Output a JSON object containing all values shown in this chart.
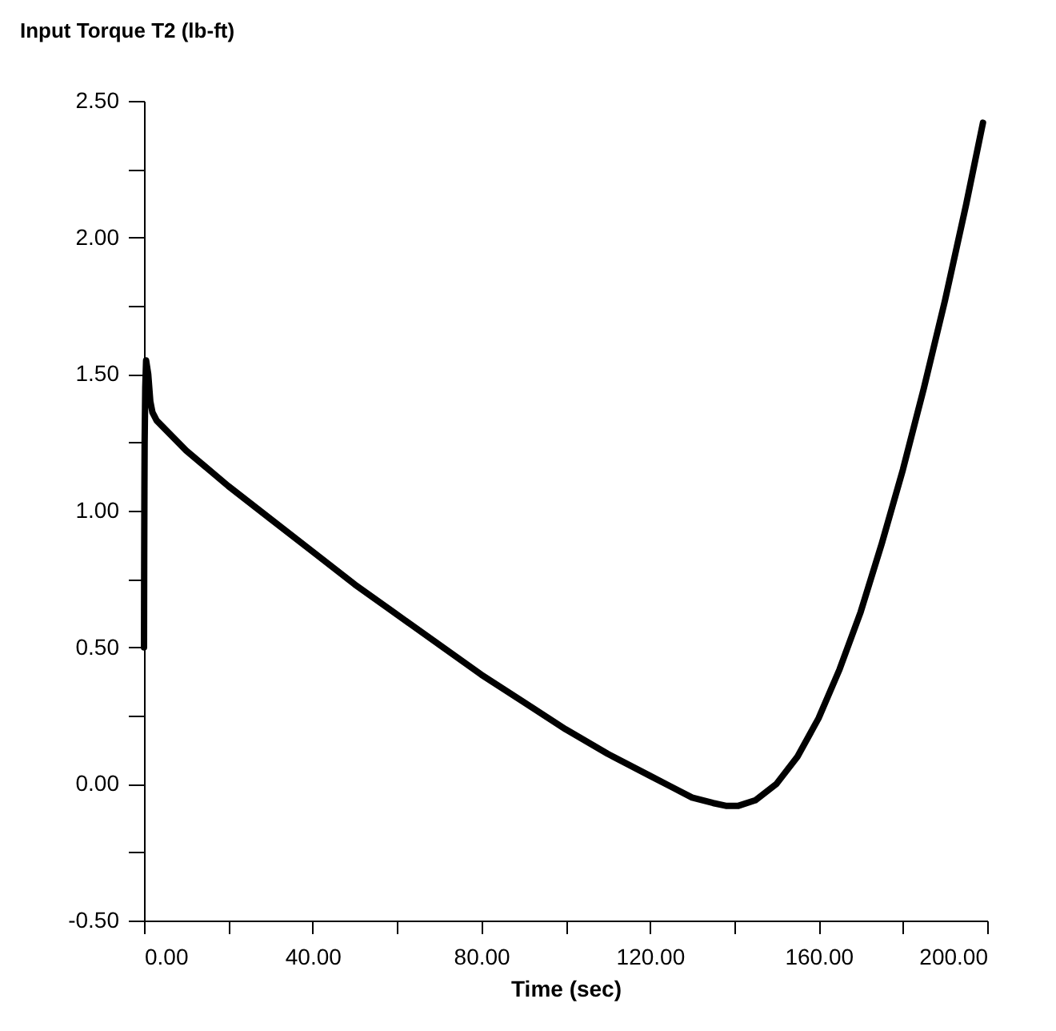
{
  "chart_data": {
    "type": "line",
    "ylabel": "Input Torque T2  (lb-ft)",
    "xlabel": "Time  (sec)",
    "x": [
      0,
      0.05,
      0.1,
      0.15,
      0.3,
      0.5,
      1,
      1.5,
      2,
      3,
      10,
      20,
      30,
      40,
      50,
      60,
      70,
      80,
      90,
      100,
      110,
      120,
      125,
      130,
      135,
      138,
      141,
      145,
      150,
      155,
      160,
      165,
      170,
      175,
      180,
      185,
      190,
      195,
      199
    ],
    "series": [
      {
        "color": "#000000",
        "values": [
          0.5,
          0.84,
          1.08,
          1.25,
          1.45,
          1.55,
          1.5,
          1.4,
          1.36,
          1.33,
          1.22,
          1.09,
          0.97,
          0.85,
          0.73,
          0.62,
          0.51,
          0.4,
          0.3,
          0.2,
          0.11,
          0.03,
          -0.01,
          -0.05,
          -0.07,
          -0.08,
          -0.08,
          -0.06,
          0.0,
          0.1,
          0.24,
          0.42,
          0.63,
          0.88,
          1.15,
          1.45,
          1.77,
          2.12,
          2.42
        ]
      }
    ],
    "xlim": [
      0,
      200
    ],
    "ylim": [
      -0.5,
      2.5
    ],
    "xticks": [
      {
        "value": 0,
        "label": "0.00"
      },
      {
        "value": 20,
        "label": null
      },
      {
        "value": 40,
        "label": "40.00"
      },
      {
        "value": 60,
        "label": null
      },
      {
        "value": 80,
        "label": "80.00"
      },
      {
        "value": 100,
        "label": null
      },
      {
        "value": 120,
        "label": "120.00"
      },
      {
        "value": 140,
        "label": null
      },
      {
        "value": 160,
        "label": "160.00"
      },
      {
        "value": 180,
        "label": null
      },
      {
        "value": 200,
        "label": "200.00"
      }
    ],
    "yticks": [
      {
        "value": -0.5,
        "label": "-0.50"
      },
      {
        "value": -0.25,
        "label": null
      },
      {
        "value": 0,
        "label": "0.00"
      },
      {
        "value": 0.25,
        "label": null
      },
      {
        "value": 0.5,
        "label": "0.50"
      },
      {
        "value": 0.75,
        "label": null
      },
      {
        "value": 1,
        "label": "1.00"
      },
      {
        "value": 1.25,
        "label": null
      },
      {
        "value": 1.5,
        "label": "1.50"
      },
      {
        "value": 1.75,
        "label": null
      },
      {
        "value": 2,
        "label": "2.00"
      },
      {
        "value": 2.25,
        "label": null
      },
      {
        "value": 2.5,
        "label": "2.50"
      }
    ],
    "grid": false,
    "marker": "none",
    "line_style": "solid"
  }
}
